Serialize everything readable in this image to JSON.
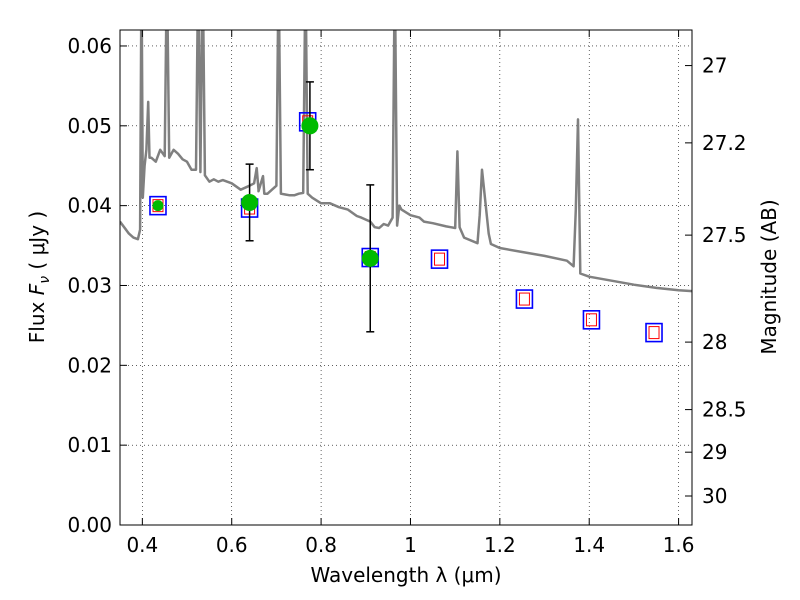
{
  "chart_data": {
    "type": "scatter",
    "xlabel": "Wavelength  λ (μm)",
    "ylabel_parts": [
      "Flux  ",
      "F",
      "ν",
      "  ( μJy )"
    ],
    "y2label": "Magnitude (AB)",
    "xlim": [
      0.35,
      1.63
    ],
    "ylim": [
      0.0,
      0.062
    ],
    "grid": true,
    "x_ticks": [
      0.4,
      0.6,
      0.8,
      1.0,
      1.2,
      1.4,
      1.6
    ],
    "x_tick_labels": [
      "0.4",
      "0.6",
      "0.8",
      "1",
      "1.2",
      "1.4",
      "1.6"
    ],
    "y_ticks": [
      0.0,
      0.01,
      0.02,
      0.03,
      0.04,
      0.05,
      0.06
    ],
    "y_tick_labels": [
      "0.00",
      "0.01",
      "0.02",
      "0.03",
      "0.04",
      "0.05",
      "0.06"
    ],
    "y2_ticks": [
      27,
      27.2,
      27.5,
      28,
      28.5,
      29,
      30
    ],
    "y2_tick_labels": [
      "27",
      "27.2",
      "27.5",
      "28",
      "28.5",
      "29",
      "30"
    ],
    "colors": {
      "model": "#808080",
      "observed": "#00bb00",
      "box": "#0000ff",
      "model_flux_square": "#ff0000",
      "error_bar": "#000000"
    },
    "series": [
      {
        "kind": "line",
        "role": "model spectrum",
        "x": [
          0.35,
          0.37,
          0.38,
          0.39,
          0.395,
          0.398,
          0.401,
          0.405,
          0.409,
          0.413,
          0.416,
          0.42,
          0.43,
          0.44,
          0.45,
          0.455,
          0.46,
          0.465,
          0.47,
          0.48,
          0.49,
          0.5,
          0.51,
          0.52,
          0.525,
          0.53,
          0.535,
          0.54,
          0.55,
          0.56,
          0.57,
          0.58,
          0.6,
          0.62,
          0.64,
          0.65,
          0.656,
          0.66,
          0.66,
          0.67,
          0.673,
          0.68,
          0.7,
          0.705,
          0.71,
          0.72,
          0.73,
          0.74,
          0.75,
          0.76,
          0.765,
          0.77,
          0.78,
          0.8,
          0.82,
          0.84,
          0.86,
          0.88,
          0.89,
          0.91,
          0.92,
          0.93,
          0.94,
          0.95,
          0.96,
          0.965,
          0.97,
          0.975,
          0.98,
          1.0,
          1.02,
          1.03,
          1.05,
          1.08,
          1.09,
          1.1,
          1.105,
          1.11,
          1.12,
          1.15,
          1.155,
          1.16,
          1.175,
          1.18,
          1.2,
          1.25,
          1.3,
          1.35,
          1.365,
          1.37,
          1.375,
          1.38,
          1.4,
          1.45,
          1.5,
          1.55,
          1.6,
          1.63
        ],
        "y": [
          0.038,
          0.0365,
          0.036,
          0.0358,
          0.037,
          0.07,
          0.041,
          0.045,
          0.047,
          0.053,
          0.046,
          0.046,
          0.0455,
          0.047,
          0.0462,
          0.07,
          0.046,
          0.0465,
          0.047,
          0.0465,
          0.0458,
          0.0455,
          0.0445,
          0.0445,
          0.07,
          0.0442,
          0.07,
          0.0438,
          0.043,
          0.0433,
          0.043,
          0.0432,
          0.0428,
          0.042,
          0.0425,
          0.0428,
          0.0447,
          0.042,
          0.0418,
          0.0437,
          0.0415,
          0.0415,
          0.0425,
          0.07,
          0.0415,
          0.0414,
          0.0413,
          0.0413,
          0.0415,
          0.0416,
          0.07,
          0.0415,
          0.041,
          0.0403,
          0.0403,
          0.0398,
          0.0395,
          0.0387,
          0.0385,
          0.038,
          0.0373,
          0.0372,
          0.0377,
          0.0375,
          0.0385,
          0.07,
          0.0375,
          0.04,
          0.0395,
          0.0388,
          0.0385,
          0.038,
          0.0378,
          0.0374,
          0.0373,
          0.0372,
          0.0468,
          0.0373,
          0.036,
          0.0353,
          0.0388,
          0.0445,
          0.0365,
          0.0352,
          0.0347,
          0.0342,
          0.0337,
          0.0331,
          0.0324,
          0.0395,
          0.0508,
          0.0315,
          0.0311,
          0.0306,
          0.0301,
          0.0297,
          0.0294,
          0.0293
        ]
      },
      {
        "kind": "square",
        "role": "model flux",
        "x": [
          0.435,
          0.64,
          0.77,
          0.91,
          1.065,
          1.255,
          1.405,
          1.545
        ],
        "y": [
          0.04,
          0.0397,
          0.0505,
          0.0335,
          0.0333,
          0.0283,
          0.0257,
          0.0241
        ]
      },
      {
        "kind": "point",
        "role": "observed flux",
        "x": [
          0.435,
          0.64,
          0.775,
          0.91
        ],
        "y": [
          0.04,
          0.0404,
          0.05,
          0.0334
        ],
        "yerr": [
          0.0,
          0.0048,
          0.0055,
          0.0092
        ]
      }
    ]
  }
}
